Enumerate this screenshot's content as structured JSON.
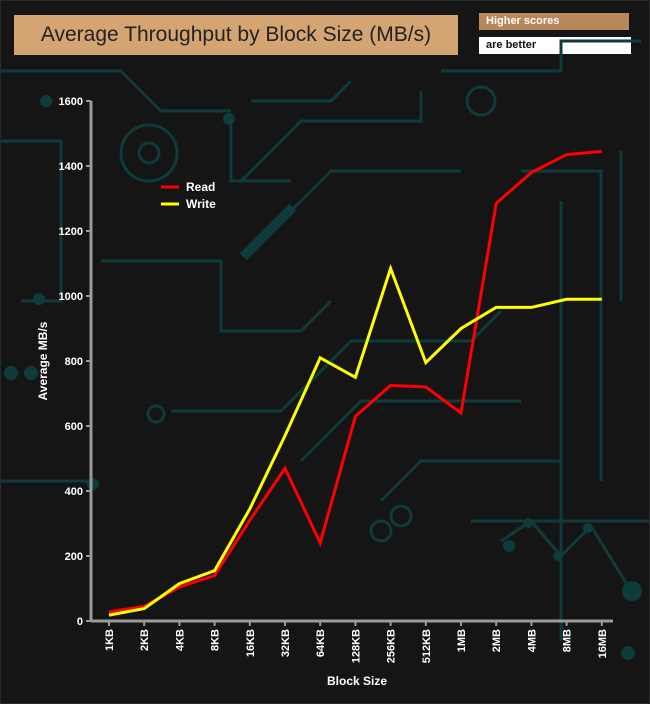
{
  "chart_data": {
    "type": "line",
    "title": "Average Throughput by Block Size (MB/s)",
    "note_line1": "Higher scores",
    "note_line2": "are better",
    "xlabel": "Block Size",
    "ylabel": "Average MB/s",
    "categories": [
      "1KB",
      "2KB",
      "4KB",
      "8KB",
      "16KB",
      "32KB",
      "64KB",
      "128KB",
      "256KB",
      "512KB",
      "1MB",
      "2MB",
      "4MB",
      "8MB",
      "16MB"
    ],
    "ylim": [
      0,
      1600
    ],
    "yticks": [
      0,
      200,
      400,
      600,
      800,
      1000,
      1200,
      1400,
      1600
    ],
    "series": [
      {
        "name": "Read",
        "color": "#ff0000",
        "values": [
          28,
          45,
          105,
          140,
          310,
          470,
          240,
          630,
          725,
          720,
          640,
          1285,
          1380,
          1435,
          1445
        ]
      },
      {
        "name": "Write",
        "color": "#ffff00",
        "values": [
          18,
          38,
          115,
          155,
          345,
          570,
          810,
          750,
          1085,
          795,
          900,
          965,
          965,
          990,
          990
        ]
      }
    ],
    "legend_position": "upper-left",
    "grid": false,
    "background": "#151515"
  }
}
